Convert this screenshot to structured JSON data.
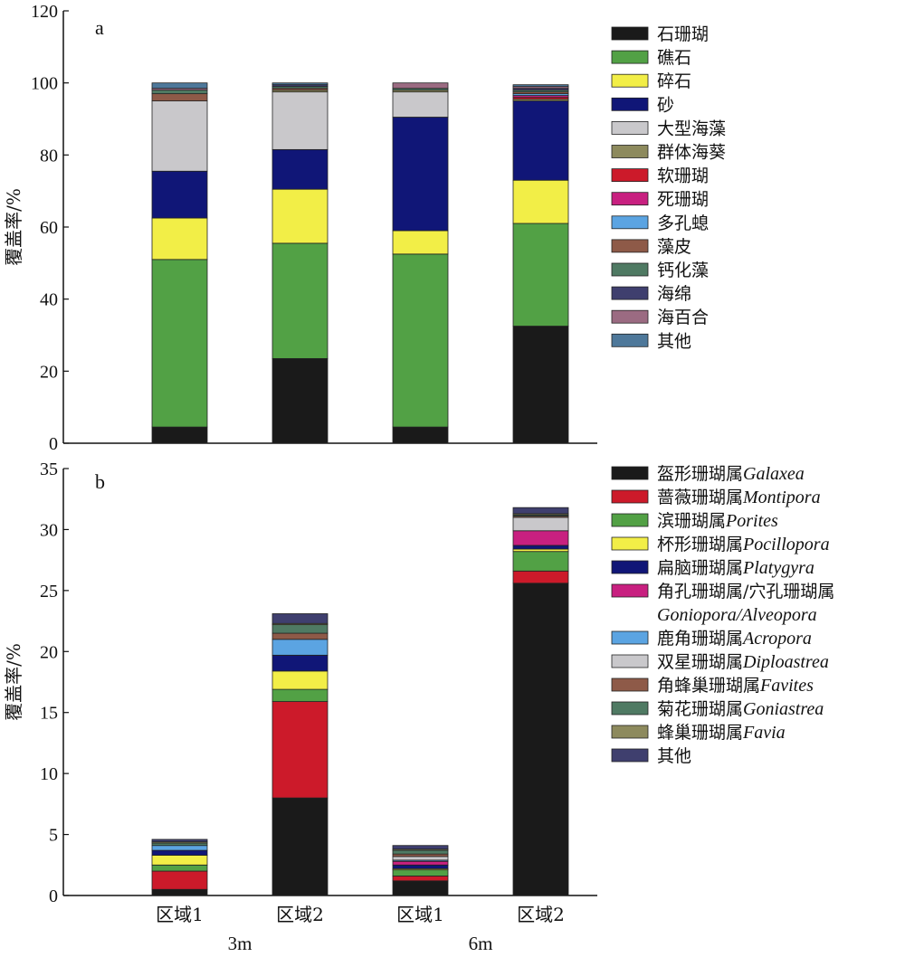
{
  "chart_data": [
    {
      "type": "bar",
      "stacked": true,
      "panel_label": "a",
      "ylabel": "覆盖率/%",
      "ylim": [
        0,
        120
      ],
      "yticks": [
        0,
        20,
        40,
        60,
        80,
        100,
        120
      ],
      "categories": [
        "区域1",
        "区域2",
        "区域1",
        "区域2"
      ],
      "series": [
        {
          "name": "石珊瑚",
          "color": "#1a1a1a",
          "values": [
            4.5,
            23.5,
            4.5,
            32.5
          ]
        },
        {
          "name": "礁石",
          "color": "#52a145",
          "values": [
            46.5,
            32.0,
            48.0,
            28.5
          ]
        },
        {
          "name": "碎石",
          "color": "#f2ee47",
          "values": [
            11.5,
            15.0,
            6.5,
            12.0
          ]
        },
        {
          "name": "砂",
          "color": "#101677",
          "values": [
            13.0,
            11.0,
            31.5,
            22.0
          ]
        },
        {
          "name": "大型海藻",
          "color": "#c9c8cb",
          "values": [
            19.5,
            16.0,
            7.0,
            0
          ]
        },
        {
          "name": "群体海葵",
          "color": "#8d8a5d",
          "values": [
            0,
            0.5,
            0.5,
            0.5
          ]
        },
        {
          "name": "软珊瑚",
          "color": "#cc1a2a",
          "values": [
            0,
            0,
            0,
            0.5
          ]
        },
        {
          "name": "死珊瑚",
          "color": "#c82080",
          "values": [
            0,
            0,
            0,
            0.5
          ]
        },
        {
          "name": "多孔螅",
          "color": "#5ba4e2",
          "values": [
            0,
            0,
            0,
            0.5
          ]
        },
        {
          "name": "藻皮",
          "color": "#8e5a48",
          "values": [
            2.0,
            0.5,
            0,
            0.5
          ]
        },
        {
          "name": "钙化藻",
          "color": "#4f7a63",
          "values": [
            1.0,
            0.5,
            0.5,
            0.5
          ]
        },
        {
          "name": "海绵",
          "color": "#3f3f6e",
          "values": [
            0,
            0.5,
            0,
            0.5
          ]
        },
        {
          "name": "海百合",
          "color": "#9b6b82",
          "values": [
            0.5,
            0,
            1.5,
            0.5
          ]
        },
        {
          "name": "其他",
          "color": "#4e789a",
          "values": [
            1.5,
            0.5,
            0,
            0.5
          ]
        }
      ]
    },
    {
      "type": "bar",
      "stacked": true,
      "panel_label": "b",
      "ylabel": "覆盖率/%",
      "ylim": [
        0,
        35
      ],
      "yticks": [
        0,
        5,
        10,
        15,
        20,
        25,
        30,
        35
      ],
      "categories": [
        "区域1",
        "区域2",
        "区域1",
        "区域2"
      ],
      "group_labels": [
        "3m",
        "6m"
      ],
      "series": [
        {
          "name": "盔形珊瑚属",
          "latin": "Galaxea",
          "color": "#1a1a1a",
          "values": [
            0.5,
            8.0,
            1.2,
            25.6
          ]
        },
        {
          "name": "蔷薇珊瑚属",
          "latin": "Montipora",
          "color": "#cc1a2a",
          "values": [
            1.5,
            7.9,
            0.4,
            1.0
          ]
        },
        {
          "name": "滨珊瑚属",
          "latin": "Porites",
          "color": "#52a145",
          "values": [
            0.5,
            1.0,
            0.5,
            1.6
          ]
        },
        {
          "name": "杯形珊瑚属",
          "latin": "Pocillopora",
          "color": "#f2ee47",
          "values": [
            0.8,
            1.5,
            0.1,
            0.2
          ]
        },
        {
          "name": "扁脑珊瑚属",
          "latin": "Platygyra",
          "color": "#101677",
          "values": [
            0.4,
            1.3,
            0.3,
            0.3
          ]
        },
        {
          "name": "角孔珊瑚属/穴孔珊瑚属",
          "latin": "Goniopora/Alveopora",
          "color": "#c82080",
          "values": [
            0,
            0,
            0.3,
            1.2
          ]
        },
        {
          "name": "鹿角珊瑚属",
          "latin": "Acropora",
          "color": "#5ba4e2",
          "values": [
            0.4,
            1.3,
            0.1,
            0
          ]
        },
        {
          "name": "双星珊瑚属",
          "latin": "Diploastrea",
          "color": "#c9c8cb",
          "values": [
            0,
            0,
            0.3,
            1.1
          ]
        },
        {
          "name": "角蜂巢珊瑚属",
          "latin": "Favites",
          "color": "#8e5a48",
          "values": [
            0,
            0.5,
            0.2,
            0.1
          ]
        },
        {
          "name": "菊花珊瑚属",
          "latin": "Goniastrea",
          "color": "#4f7a63",
          "values": [
            0.2,
            0.7,
            0.3,
            0.1
          ]
        },
        {
          "name": "蜂巢珊瑚属",
          "latin": "Favia",
          "color": "#8d8a5d",
          "values": [
            0.1,
            0.1,
            0.1,
            0.1
          ]
        },
        {
          "name": "其他",
          "latin": "",
          "color": "#3f3f6e",
          "values": [
            0.2,
            0.8,
            0.3,
            0.5
          ]
        }
      ]
    }
  ]
}
